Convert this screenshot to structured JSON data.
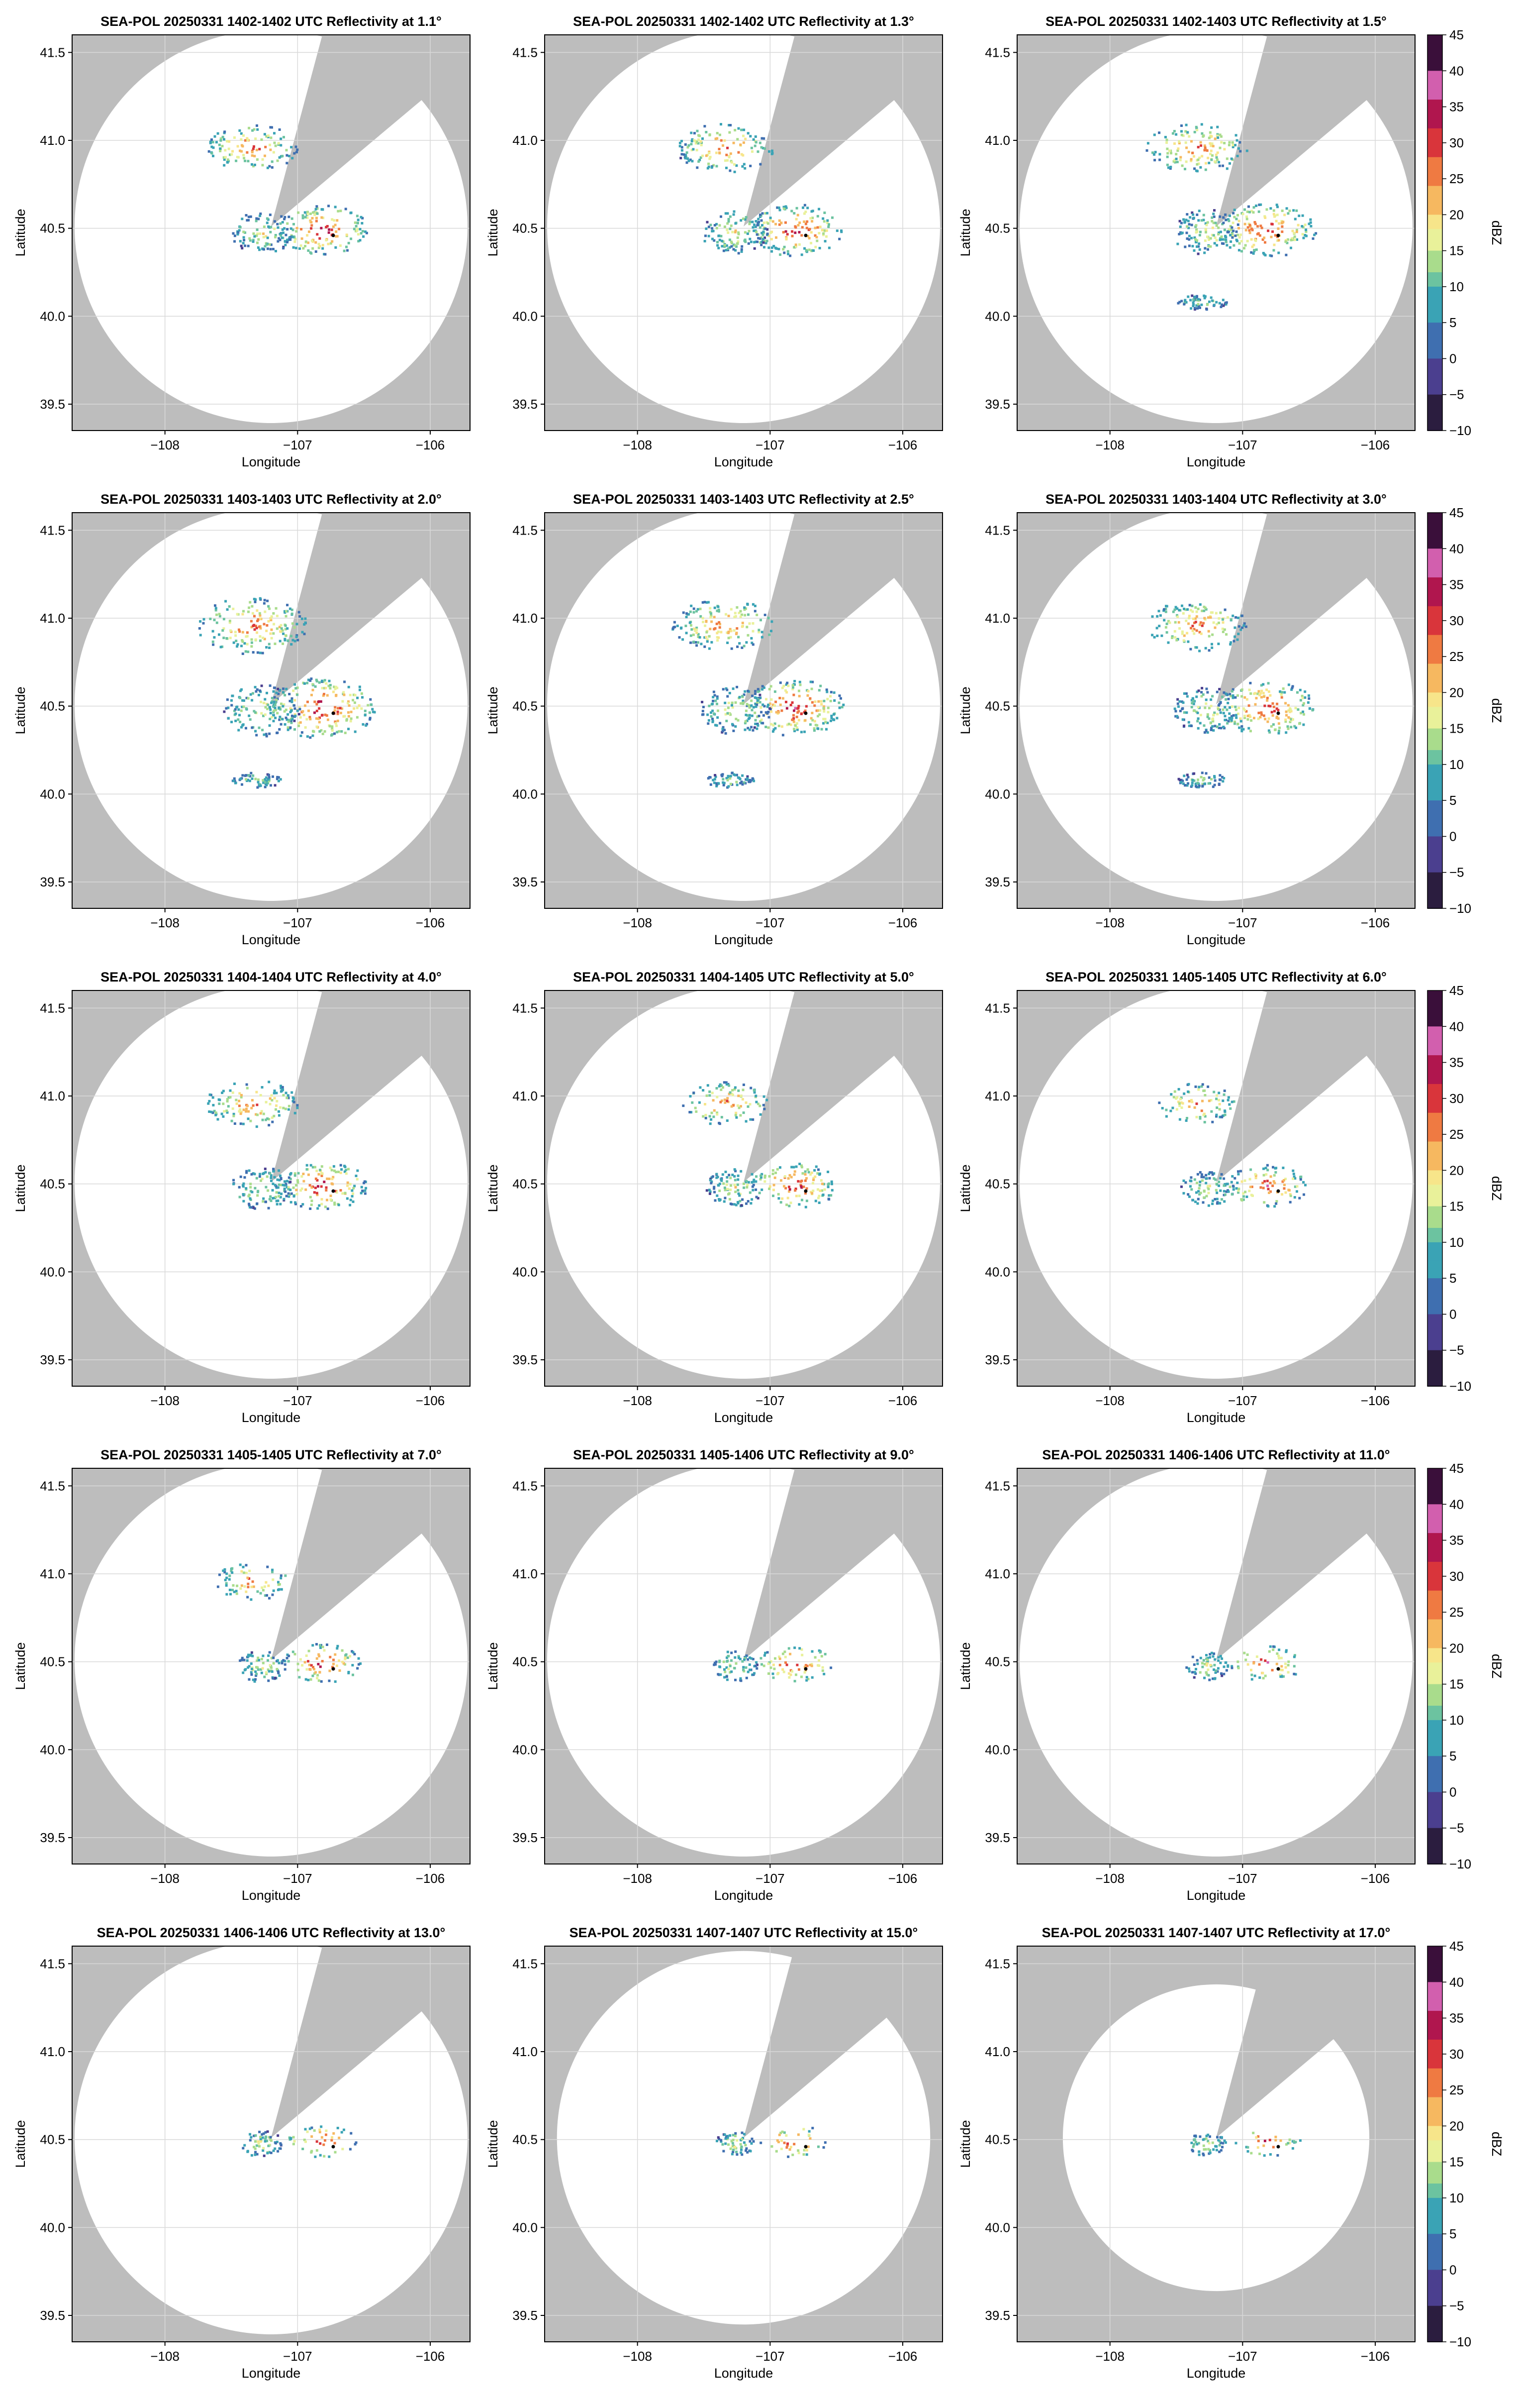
{
  "figure": {
    "instrument": "SEA-POL",
    "variable": "Reflectivity",
    "xlabel": "Longitude",
    "ylabel": "Latitude",
    "colorbar_label": "dBZ",
    "colorbar_ticks": [
      "45",
      "40",
      "35",
      "30",
      "25",
      "20",
      "15",
      "10",
      "5",
      "0",
      "−5",
      "−10"
    ],
    "x_tick_labels": [
      "−108",
      "−107",
      "−106"
    ],
    "y_tick_labels": [
      "41.5",
      "41.0",
      "40.5",
      "40.0",
      "39.5"
    ],
    "colors": {
      "mask": "#bdbdbd",
      "coverage": "#ffffff",
      "grid": "#d9d9d9"
    }
  },
  "chart_data": [
    {
      "type": "heatmap",
      "title": "SEA-POL 20250331 1402-1402 UTC Reflectivity at 1.1°",
      "elevation_deg": 1.1,
      "xlim": [
        -108.7,
        -105.7
      ],
      "ylim": [
        39.35,
        41.6
      ],
      "colorbar": false,
      "range_scale": 1.0,
      "echo_intensity": 0.55
    },
    {
      "type": "heatmap",
      "title": "SEA-POL 20250331 1402-1402 UTC Reflectivity at 1.3°",
      "elevation_deg": 1.3,
      "xlim": [
        -108.7,
        -105.7
      ],
      "ylim": [
        39.35,
        41.6
      ],
      "colorbar": false,
      "range_scale": 1.0,
      "echo_intensity": 0.6
    },
    {
      "type": "heatmap",
      "title": "SEA-POL 20250331 1402-1403 UTC Reflectivity at 1.5°",
      "elevation_deg": 1.5,
      "xlim": [
        -108.7,
        -105.7
      ],
      "ylim": [
        39.35,
        41.6
      ],
      "colorbar": true,
      "range_scale": 1.0,
      "echo_intensity": 0.65
    },
    {
      "type": "heatmap",
      "title": "SEA-POL 20250331 1403-1403 UTC Reflectivity at 2.0°",
      "elevation_deg": 2.0,
      "xlim": [
        -108.7,
        -105.7
      ],
      "ylim": [
        39.35,
        41.6
      ],
      "colorbar": false,
      "range_scale": 1.0,
      "echo_intensity": 0.8
    },
    {
      "type": "heatmap",
      "title": "SEA-POL 20250331 1403-1403 UTC Reflectivity at 2.5°",
      "elevation_deg": 2.5,
      "xlim": [
        -108.7,
        -105.7
      ],
      "ylim": [
        39.35,
        41.6
      ],
      "colorbar": false,
      "range_scale": 1.0,
      "echo_intensity": 0.7
    },
    {
      "type": "heatmap",
      "title": "SEA-POL 20250331 1403-1404 UTC Reflectivity at 3.0°",
      "elevation_deg": 3.0,
      "xlim": [
        -108.7,
        -105.7
      ],
      "ylim": [
        39.35,
        41.6
      ],
      "colorbar": true,
      "range_scale": 1.0,
      "echo_intensity": 0.65
    },
    {
      "type": "heatmap",
      "title": "SEA-POL 20250331 1404-1404 UTC Reflectivity at 4.0°",
      "elevation_deg": 4.0,
      "xlim": [
        -108.7,
        -105.7
      ],
      "ylim": [
        39.35,
        41.6
      ],
      "colorbar": false,
      "range_scale": 1.0,
      "echo_intensity": 0.55
    },
    {
      "type": "heatmap",
      "title": "SEA-POL 20250331 1404-1405 UTC Reflectivity at 5.0°",
      "elevation_deg": 5.0,
      "xlim": [
        -108.7,
        -105.7
      ],
      "ylim": [
        39.35,
        41.6
      ],
      "colorbar": false,
      "range_scale": 1.0,
      "echo_intensity": 0.45
    },
    {
      "type": "heatmap",
      "title": "SEA-POL 20250331 1405-1405 UTC Reflectivity at 6.0°",
      "elevation_deg": 6.0,
      "xlim": [
        -108.7,
        -105.7
      ],
      "ylim": [
        39.35,
        41.6
      ],
      "colorbar": true,
      "range_scale": 1.0,
      "echo_intensity": 0.38
    },
    {
      "type": "heatmap",
      "title": "SEA-POL 20250331 1405-1405 UTC Reflectivity at 7.0°",
      "elevation_deg": 7.0,
      "xlim": [
        -108.7,
        -105.7
      ],
      "ylim": [
        39.35,
        41.6
      ],
      "colorbar": false,
      "range_scale": 1.0,
      "echo_intensity": 0.32
    },
    {
      "type": "heatmap",
      "title": "SEA-POL 20250331 1405-1406 UTC Reflectivity at 9.0°",
      "elevation_deg": 9.0,
      "xlim": [
        -108.7,
        -105.7
      ],
      "ylim": [
        39.35,
        41.6
      ],
      "colorbar": false,
      "range_scale": 1.0,
      "echo_intensity": 0.27
    },
    {
      "type": "heatmap",
      "title": "SEA-POL 20250331 1406-1406 UTC Reflectivity at 11.0°",
      "elevation_deg": 11.0,
      "xlim": [
        -108.7,
        -105.7
      ],
      "ylim": [
        39.35,
        41.6
      ],
      "colorbar": true,
      "range_scale": 1.0,
      "echo_intensity": 0.22
    },
    {
      "type": "heatmap",
      "title": "SEA-POL 20250331 1406-1406 UTC Reflectivity at 13.0°",
      "elevation_deg": 13.0,
      "xlim": [
        -108.7,
        -105.7
      ],
      "ylim": [
        39.35,
        41.6
      ],
      "colorbar": false,
      "range_scale": 1.0,
      "echo_intensity": 0.18
    },
    {
      "type": "heatmap",
      "title": "SEA-POL 20250331 1407-1407 UTC Reflectivity at 15.0°",
      "elevation_deg": 15.0,
      "xlim": [
        -108.7,
        -105.7
      ],
      "ylim": [
        39.35,
        41.6
      ],
      "colorbar": false,
      "range_scale": 0.95,
      "echo_intensity": 0.15
    },
    {
      "type": "heatmap",
      "title": "SEA-POL 20250331 1407-1407 UTC Reflectivity at 17.0°",
      "elevation_deg": 17.0,
      "xlim": [
        -108.7,
        -105.7
      ],
      "ylim": [
        39.35,
        41.6
      ],
      "colorbar": true,
      "range_scale": 0.78,
      "echo_intensity": 0.12
    }
  ]
}
